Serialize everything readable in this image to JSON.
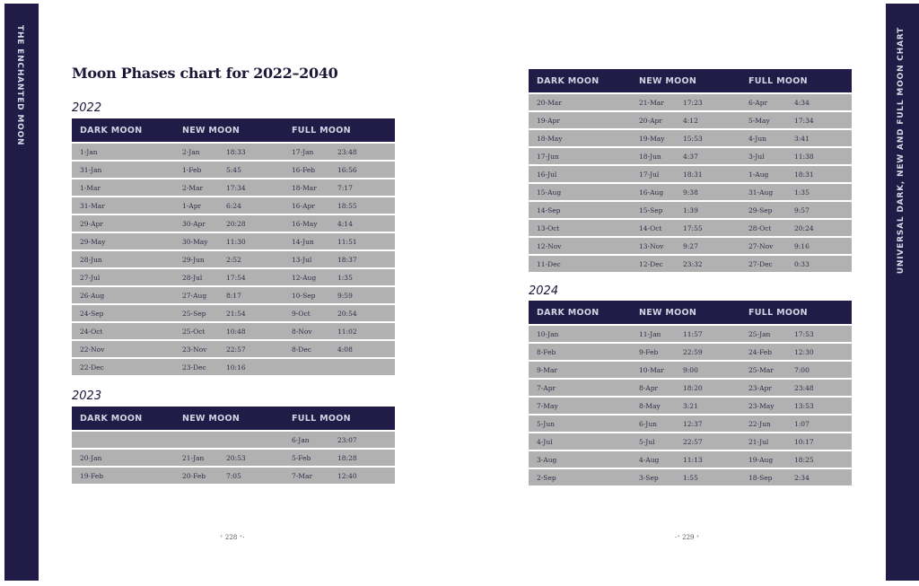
{
  "left_band": "THE ENCHANTED MOON",
  "right_band": "UNIVERSAL DARK, NEW AND FULL MOON CHART",
  "title": "Moon Phases chart for 2022–2040",
  "headers": {
    "dark": "DARK MOON",
    "new": "NEW MOON",
    "full": "FULL MOON"
  },
  "page_left": "⁺ 228 ⁺·",
  "page_right": "·⁺ 229 ⁺",
  "tables": [
    {
      "year": "2022",
      "rows": [
        [
          "1-Jan",
          "2-Jan",
          "18:33",
          "17-Jan",
          "23:48"
        ],
        [
          "31-Jan",
          "1-Feb",
          "5:45",
          "16-Feb",
          "16:56"
        ],
        [
          "1-Mar",
          "2-Mar",
          "17:34",
          "18-Mar",
          "7:17"
        ],
        [
          "31-Mar",
          "1-Apr",
          "6:24",
          "16-Apr",
          "18:55"
        ],
        [
          "29-Apr",
          "30-Apr",
          "20:28",
          "16-May",
          "4:14"
        ],
        [
          "29-May",
          "30-May",
          "11:30",
          "14-Jun",
          "11:51"
        ],
        [
          "28-Jun",
          "29-Jun",
          "2:52",
          "13-Jul",
          "18:37"
        ],
        [
          "27-Jul",
          "28-Jul",
          "17:54",
          "12-Aug",
          "1:35"
        ],
        [
          "26-Aug",
          "27-Aug",
          "8:17",
          "10-Sep",
          "9:59"
        ],
        [
          "24-Sep",
          "25-Sep",
          "21:54",
          "9-Oct",
          "20:54"
        ],
        [
          "24-Oct",
          "25-Oct",
          "10:48",
          "8-Nov",
          "11:02"
        ],
        [
          "22-Nov",
          "23-Nov",
          "22:57",
          "8-Dec",
          "4:08"
        ],
        [
          "22-Dec",
          "23-Dec",
          "10:16",
          "",
          ""
        ]
      ]
    },
    {
      "year": "2023",
      "rows": [
        [
          "",
          "",
          "",
          "6-Jan",
          "23:07"
        ],
        [
          "20-Jan",
          "21-Jan",
          "20:53",
          "5-Feb",
          "18:28"
        ],
        [
          "19-Feb",
          "20-Feb",
          "7:05",
          "7-Mar",
          "12:40"
        ]
      ]
    },
    {
      "year": "",
      "rows": [
        [
          "20-Mar",
          "21-Mar",
          "17:23",
          "6-Apr",
          "4:34"
        ],
        [
          "19-Apr",
          "20-Apr",
          "4:12",
          "5-May",
          "17:34"
        ],
        [
          "18-May",
          "19-May",
          "15:53",
          "4-Jun",
          "3:41"
        ],
        [
          "17-Jun",
          "18-Jun",
          "4:37",
          "3-Jul",
          "11:38"
        ],
        [
          "16-Jul",
          "17-Jul",
          "18:31",
          "1-Aug",
          "18:31"
        ],
        [
          "15-Aug",
          "16-Aug",
          "9:38",
          "31-Aug",
          "1:35"
        ],
        [
          "14-Sep",
          "15-Sep",
          "1:39",
          "29-Sep",
          "9:57"
        ],
        [
          "13-Oct",
          "14-Oct",
          "17:55",
          "28-Oct",
          "20:24"
        ],
        [
          "12-Nov",
          "13-Nov",
          "9:27",
          "27-Nov",
          "9:16"
        ],
        [
          "11-Dec",
          "12-Dec",
          "23:32",
          "27-Dec",
          "0:33"
        ]
      ]
    },
    {
      "year": "2024",
      "rows": [
        [
          "10-Jan",
          "11-Jan",
          "11:57",
          "25-Jan",
          "17:53"
        ],
        [
          "8-Feb",
          "9-Feb",
          "22:59",
          "24-Feb",
          "12:30"
        ],
        [
          "9-Mar",
          "10-Mar",
          "9:00",
          "25-Mar",
          "7:00"
        ],
        [
          "7-Apr",
          "8-Apr",
          "18:20",
          "23-Apr",
          "23:48"
        ],
        [
          "7-May",
          "8-May",
          "3:21",
          "23-May",
          "13:53"
        ],
        [
          "5-Jun",
          "6-Jun",
          "12:37",
          "22-Jun",
          "1:07"
        ],
        [
          "4-Jul",
          "5-Jul",
          "22:57",
          "21-Jul",
          "10:17"
        ],
        [
          "3-Aug",
          "4-Aug",
          "11:13",
          "19-Aug",
          "18:25"
        ],
        [
          "2-Sep",
          "3-Sep",
          "1:55",
          "18-Sep",
          "2:34"
        ]
      ]
    }
  ]
}
